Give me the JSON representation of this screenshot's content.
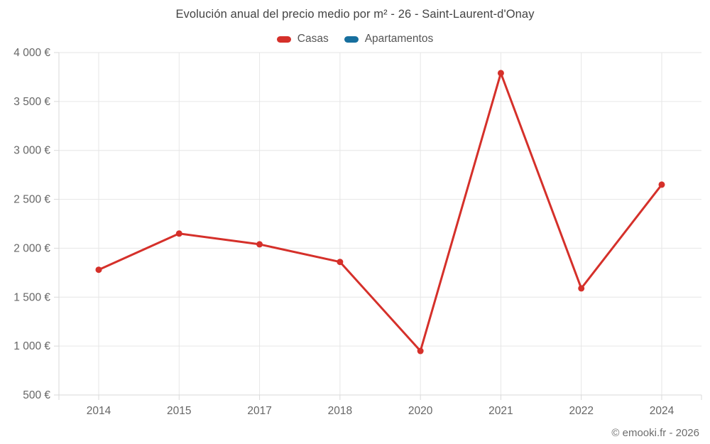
{
  "header": {
    "title": "Evolución anual del precio medio por m² - 26 - Saint-Laurent-d'Onay"
  },
  "legend": {
    "items": [
      {
        "label": "Casas",
        "color": "#d5302a"
      },
      {
        "label": "Apartamentos",
        "color": "#176f9e"
      }
    ]
  },
  "footer": {
    "credit": "© emooki.fr - 2026"
  },
  "colors": {
    "grid": "#e6e6e6",
    "axis_line": "#d9d9d9",
    "tick_label": "#666666",
    "title_text": "#434343",
    "legend_text": "#555555",
    "background": "#ffffff",
    "casas_line": "#d5302a",
    "apartamentos_line": "#176f9e"
  },
  "chart_data": {
    "type": "line",
    "title": "Evolución anual del precio medio por m² - 26 - Saint-Laurent-d'Onay",
    "categories": [
      "2014",
      "2015",
      "2017",
      "2018",
      "2020",
      "2021",
      "2022",
      "2024"
    ],
    "series": [
      {
        "name": "Casas",
        "color": "#d5302a",
        "values": [
          1780,
          2150,
          2040,
          1860,
          950,
          3790,
          1590,
          2650
        ]
      },
      {
        "name": "Apartamentos",
        "color": "#176f9e",
        "values": []
      }
    ],
    "xlabel": "",
    "ylabel": "",
    "ylim": [
      500,
      4000
    ],
    "ytick_step": 500,
    "ytick_labels": [
      "500 €",
      "1 000 €",
      "1 500 €",
      "2 000 €",
      "2 500 €",
      "3 000 €",
      "3 500 €",
      "4 000 €"
    ],
    "currency_suffix": "€",
    "grid": true,
    "legend_position": "top",
    "markers": true
  }
}
